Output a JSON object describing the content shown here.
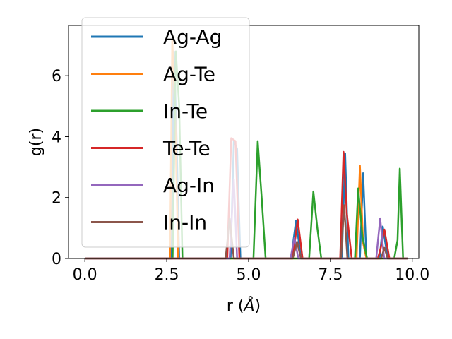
{
  "chart_data": {
    "type": "line",
    "xlabel": "r (",
    "xlabel_unit": "Å",
    "xlabel_close": ")",
    "ylabel": "g(r)",
    "xlim": [
      -0.5,
      10.2
    ],
    "ylim": [
      0,
      7.65
    ],
    "xticks": [
      0.0,
      2.5,
      5.0,
      7.5,
      10.0
    ],
    "xtick_labels": [
      "0.0",
      "2.5",
      "5.0",
      "7.5",
      "10.0"
    ],
    "yticks": [
      0,
      2,
      4,
      6
    ],
    "ytick_labels": [
      "0",
      "2",
      "4",
      "6"
    ],
    "grid": false,
    "legend_position": "upper-left",
    "series": [
      {
        "name": "Ag-Ag",
        "color": "#1f77b4",
        "x": [
          0,
          2.65,
          2.72,
          2.8,
          2.88,
          4.45,
          4.55,
          4.65,
          4.75,
          6.3,
          6.45,
          6.6,
          7.85,
          7.95,
          8.05,
          8.4,
          8.5,
          8.6,
          9.0,
          9.1,
          9.25,
          9.85
        ],
        "y": [
          0,
          0,
          6.8,
          4.0,
          0,
          0,
          3.85,
          3.6,
          0,
          0,
          1.25,
          0,
          0,
          3.45,
          0,
          0,
          2.8,
          0,
          0,
          1.05,
          0,
          0
        ]
      },
      {
        "name": "Ag-Te",
        "color": "#ff7f0e",
        "x": [
          0,
          2.6,
          2.67,
          2.75,
          2.85,
          8.3,
          8.4,
          8.5,
          8.6,
          9.85
        ],
        "y": [
          0,
          0,
          7.2,
          5.0,
          0,
          0,
          3.05,
          0.5,
          0,
          0
        ]
      },
      {
        "name": "In-Te",
        "color": "#2ca02c",
        "x": [
          0,
          2.68,
          2.78,
          2.88,
          2.98,
          5.15,
          5.28,
          5.4,
          5.52,
          6.85,
          6.98,
          7.1,
          7.22,
          8.25,
          8.35,
          8.48,
          8.62,
          9.45,
          9.55,
          9.62,
          9.72,
          9.85
        ],
        "y": [
          0,
          0,
          6.8,
          5.0,
          0,
          0,
          3.85,
          2.0,
          0,
          0,
          2.2,
          1.0,
          0,
          0,
          2.3,
          0.7,
          0,
          0,
          0.6,
          2.95,
          0,
          0
        ]
      },
      {
        "name": "Te-Te",
        "color": "#d62728",
        "x": [
          0,
          4.35,
          4.47,
          4.6,
          4.72,
          6.35,
          6.5,
          6.65,
          7.8,
          7.9,
          8.0,
          8.15,
          8.95,
          9.05,
          9.15,
          9.3,
          9.85
        ],
        "y": [
          0,
          0,
          3.95,
          3.85,
          0,
          0,
          1.28,
          0,
          0,
          3.5,
          1.5,
          0,
          0,
          0.4,
          0.95,
          0,
          0
        ]
      },
      {
        "name": "Ag-In",
        "color": "#9467bd",
        "x": [
          0,
          4.42,
          4.55,
          4.65,
          6.28,
          6.4,
          6.52,
          8.9,
          9.02,
          9.14,
          9.85
        ],
        "y": [
          0,
          0,
          2.6,
          0,
          0,
          0.68,
          0,
          0,
          1.32,
          0,
          0
        ]
      },
      {
        "name": "In-In",
        "color": "#8c564b",
        "x": [
          0,
          4.3,
          4.42,
          4.55,
          6.35,
          6.48,
          6.6,
          7.82,
          7.92,
          8.02,
          9.05,
          9.15,
          9.25,
          9.85
        ],
        "y": [
          0,
          0,
          1.32,
          0,
          0,
          0.55,
          0,
          0,
          1.75,
          0,
          0,
          0.35,
          0,
          0
        ]
      }
    ]
  }
}
